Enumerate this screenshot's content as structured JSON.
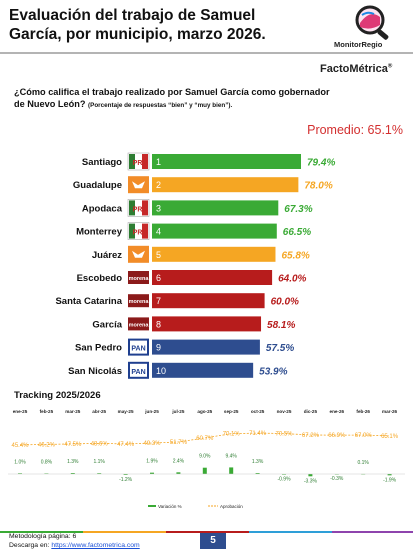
{
  "title": "Evaluación del trabajo de Samuel García, por municipio, marzo 2026.",
  "brand": {
    "monitor": "MonitorRegio",
    "facto": "FactoMétrica",
    "reg": "®"
  },
  "question": "¿Cómo califica el trabajo realizado por Samuel García como gobernador de Nuevo León?",
  "question_note": "(Porcentaje de respuestas “bien” y “muy bien”).",
  "promedio": "Promedio: 65.1%",
  "colors": {
    "green": "#3aaa35",
    "orange": "#f5a623",
    "red": "#b71c1c",
    "blue": "#2e4d8f",
    "morena": "#8b1a1a",
    "pan": "#1f3f8f"
  },
  "chart_data": [
    {
      "type": "bar",
      "orientation": "horizontal",
      "categories": [
        "Santiago",
        "Guadalupe",
        "Apodaca",
        "Monterrey",
        "Juárez",
        "Escobedo",
        "Santa Catarina",
        "García",
        "San Pedro",
        "San Nicolás"
      ],
      "ranks": [
        "1",
        "2",
        "3",
        "4",
        "5",
        "6",
        "7",
        "8",
        "9",
        "10"
      ],
      "values": [
        79.4,
        78.0,
        67.3,
        66.5,
        65.8,
        64.0,
        60.0,
        58.1,
        57.5,
        53.9
      ],
      "value_labels": [
        "79.4%",
        "78.0%",
        "67.3%",
        "66.5%",
        "65.8%",
        "64.0%",
        "60.0%",
        "58.1%",
        "57.5%",
        "53.9%"
      ],
      "parties": [
        "PRI",
        "MC",
        "PRI",
        "PRI",
        "MC",
        "morena",
        "morena",
        "morena",
        "PAN",
        "PAN"
      ],
      "bar_colors": [
        "#3aaa35",
        "#f5a623",
        "#3aaa35",
        "#3aaa35",
        "#f5a623",
        "#b71c1c",
        "#b71c1c",
        "#b71c1c",
        "#2e4d8f",
        "#2e4d8f"
      ],
      "label_colors": [
        "#3aaa35",
        "#f5a623",
        "#3aaa35",
        "#3aaa35",
        "#f5a623",
        "#b71c1c",
        "#b71c1c",
        "#b71c1c",
        "#2e4d8f",
        "#2e4d8f"
      ],
      "xlim": [
        0,
        80
      ]
    },
    {
      "type": "bar+line",
      "title": "Tracking 2025/2026",
      "categories": [
        "ene-25",
        "feb-25",
        "mar-25",
        "abr-25",
        "may-25",
        "jun-25",
        "jul-25",
        "ago-25",
        "sep-25",
        "oct-25",
        "nov-25",
        "dic-25",
        "ene-26",
        "feb-26",
        "mar-26"
      ],
      "series": [
        {
          "name": "Aprobación",
          "type": "line",
          "color": "#f5a623",
          "values": [
            45.4,
            46.2,
            47.5,
            48.6,
            47.4,
            49.3,
            51.7,
            60.7,
            70.1,
            71.4,
            70.5,
            67.2,
            66.9,
            67.0,
            65.1
          ],
          "labels": [
            "45.4%",
            "46.2%",
            "47.5%",
            "48.6%",
            "47.4%",
            "49.3%",
            "51.7%",
            "60.7%",
            "70.1%",
            "71.4%",
            "70.5%",
            "67.2%",
            "66.9%",
            "67.0%",
            "65.1%"
          ]
        },
        {
          "name": "Variación %",
          "type": "bar",
          "color": "#3aaa35",
          "values": [
            1.0,
            0.8,
            1.3,
            1.1,
            -1.2,
            1.9,
            2.4,
            9.0,
            9.4,
            1.3,
            -0.9,
            -3.3,
            -0.3,
            0.1,
            -1.9
          ],
          "labels": [
            "1.0%",
            "0.8%",
            "1.3%",
            "1.1%",
            "-1.2%",
            "1.9%",
            "2.4%",
            "9.0%",
            "9.4%",
            "1.3%",
            "-0.9%",
            "-3.3%",
            "-0.3%",
            "0.1%",
            "-1.9%"
          ]
        }
      ],
      "legend": "bottom"
    }
  ],
  "footer": {
    "methodology": "Metodología página: 6",
    "download_prefix": "Descarga en:",
    "download_link": "https://www.factometrica.com",
    "page": "5"
  }
}
